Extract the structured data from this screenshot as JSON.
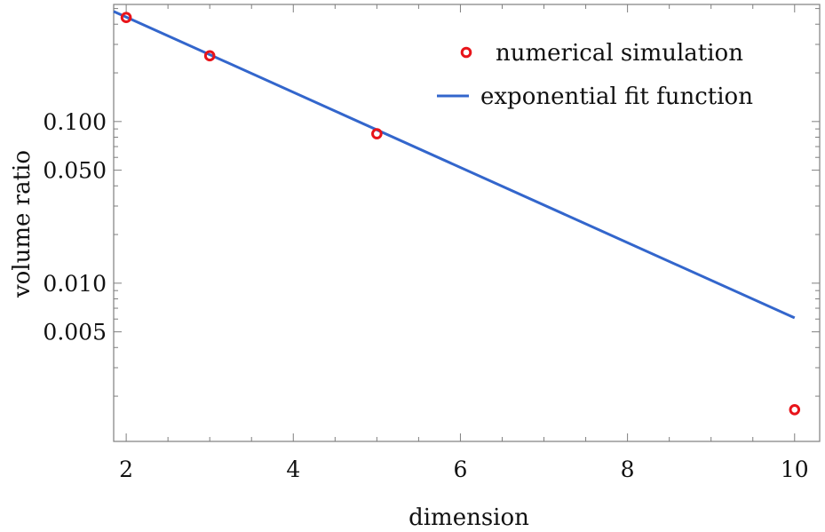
{
  "chart_data": {
    "type": "scatter",
    "xlabel": "dimension",
    "ylabel": "volume ratio",
    "y_scale": "log",
    "xlim": [
      1.85,
      10.3
    ],
    "ylim": [
      0.00105,
      0.53
    ],
    "x_ticks": [
      2,
      4,
      6,
      8,
      10
    ],
    "y_ticks": [
      0.005,
      0.01,
      0.05,
      0.1
    ],
    "y_tick_labels": [
      "0.005",
      "0.010",
      "0.050",
      "0.100"
    ],
    "legend_position": "top-right",
    "series": [
      {
        "name": "numerical simulation",
        "kind": "points",
        "color": "#e8141a",
        "marker": "open-circle",
        "x": [
          2,
          3,
          5,
          10
        ],
        "y": [
          0.44,
          0.255,
          0.084,
          0.00165
        ]
      },
      {
        "name": "exponential fit function",
        "kind": "line",
        "color": "#3366cc",
        "x": [
          1.85,
          10
        ],
        "y": [
          0.48,
          0.0061
        ]
      }
    ]
  }
}
